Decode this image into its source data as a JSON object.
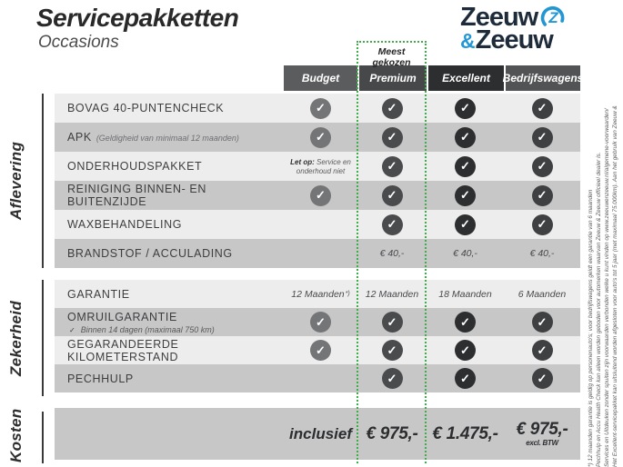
{
  "header": {
    "title": "Servicepakketten",
    "subtitle": "Occasions"
  },
  "logo": {
    "word1": "Zeeuw",
    "amp": "&",
    "word2": "Zeeuw",
    "z_letter": "Z"
  },
  "most_chosen_label": "Meest gekozen",
  "icons": {
    "check": "✓"
  },
  "colors": {
    "accent_green": "#3fae49",
    "navy": "#1d2b3a",
    "blue": "#2397d4",
    "row_light": "#eeedee",
    "row_dark": "#c7c7c8",
    "header_bg": [
      "#5b5c5e",
      "#474849",
      "#2d2e30",
      "#525355"
    ],
    "check_bg": [
      "#747577",
      "#4a4b4d",
      "#2d2e30",
      "#3f4042"
    ]
  },
  "columns": [
    {
      "key": "budget",
      "label": "Budget"
    },
    {
      "key": "premium",
      "label": "Premium"
    },
    {
      "key": "excellent",
      "label": "Excellent"
    },
    {
      "key": "bedrijfswagens",
      "label": "Bedrijfswagens"
    }
  ],
  "sections": [
    {
      "key": "aflevering",
      "name": "Aflevering",
      "rows": [
        {
          "label": "BOVAG 40-PUNTENCHECK",
          "cells": [
            "check",
            "check",
            "check",
            "check"
          ]
        },
        {
          "label": "APK",
          "label_note": "(Geldigheid van minimaal 12 maanden)",
          "cells": [
            "check",
            "check",
            "check",
            "check"
          ]
        },
        {
          "label": "ONDERHOUDSPAKKET",
          "cells": [
            {
              "type": "note",
              "bold": "Let op:",
              "text": "Service en onderhoud niet"
            },
            "check",
            "check",
            "check"
          ]
        },
        {
          "label": "REINIGING BINNEN- EN BUITENZIJDE",
          "cells": [
            "check",
            "check",
            "check",
            "check"
          ]
        },
        {
          "label": "WAXBEHANDELING",
          "cells": [
            "empty",
            "check",
            "check",
            "check"
          ]
        },
        {
          "label": "BRANDSTOF / ACCULADING",
          "cells": [
            "empty",
            {
              "type": "text",
              "text": "€ 40,-"
            },
            {
              "type": "text",
              "text": "€ 40,-"
            },
            {
              "type": "text",
              "text": "€ 40,-"
            }
          ]
        }
      ]
    },
    {
      "key": "zekerheid",
      "name": "Zekerheid",
      "rows": [
        {
          "label": "GARANTIE",
          "cells": [
            {
              "type": "text",
              "text": "12 Maanden",
              "sup": "*)"
            },
            {
              "type": "text",
              "text": "12 Maanden"
            },
            {
              "type": "text",
              "text": "18 Maanden"
            },
            {
              "type": "text",
              "text": "6 Maanden"
            }
          ]
        },
        {
          "label": "OMRUILGARANTIE",
          "sub_note": "Binnen 14 dagen (maximaal 750 km)",
          "cells": [
            "check",
            "check",
            "check",
            "check"
          ]
        },
        {
          "label": "GEGARANDEERDE KILOMETERSTAND",
          "cells": [
            "check",
            "check",
            "check",
            "check"
          ]
        },
        {
          "label": "PECHHULP",
          "cells": [
            "empty",
            "check",
            "check",
            "check"
          ]
        }
      ]
    },
    {
      "key": "kosten",
      "name": "Kosten",
      "rows": [
        {
          "label": "",
          "cells": [
            {
              "type": "cost-label",
              "text": "inclusief"
            },
            {
              "type": "price",
              "text": "€ 975,-"
            },
            {
              "type": "price",
              "text": "€ 1.475,-"
            },
            {
              "type": "price",
              "text": "€ 975,-",
              "sub": "excl. BTW"
            }
          ]
        }
      ]
    }
  ],
  "footnotes": [
    "Het Excellent-servicepakket kan uitsluitend worden afgesloten voor auto's tot 5 jaar (met maximaal 75.000km). Aan het gebruik van Zeeuw &",
    "Services en Uitdeuken zonder spuiten zijn voorwaarden verbonden welke u kunt vinden op www.zeeuwenzeeuw.nl/algemene-voorwaarden/",
    "Pechhulp en Accu Health Check kan alleen worden geboden voor automerken waarvan Zeeuw & Zeeuw officieel dealer is.",
    "*) 12 maanden garantie is geldig op personenauto's; voor bedrijfswagens geldt een garantie van 6 maanden"
  ]
}
